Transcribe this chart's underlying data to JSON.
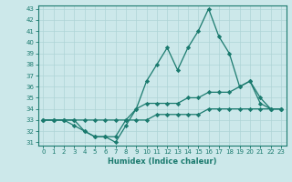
{
  "xlabel": "Humidex (Indice chaleur)",
  "ylabel": "",
  "x": [
    0,
    1,
    2,
    3,
    4,
    5,
    6,
    7,
    8,
    9,
    10,
    11,
    12,
    13,
    14,
    15,
    16,
    17,
    18,
    19,
    20,
    21,
    22,
    23
  ],
  "line_max": [
    33,
    33,
    33,
    33,
    32,
    31.5,
    31.5,
    31,
    32.5,
    34,
    36.5,
    38,
    39.5,
    37.5,
    39.5,
    41,
    43,
    40.5,
    39,
    36,
    36.5,
    34.5,
    34,
    34
  ],
  "line_avg": [
    33,
    33,
    33,
    32.5,
    32,
    31.5,
    31.5,
    31.5,
    33,
    34,
    34.5,
    34.5,
    34.5,
    34.5,
    35,
    35,
    35.5,
    35.5,
    35.5,
    36,
    36.5,
    35,
    34,
    34
  ],
  "line_min": [
    33,
    33,
    33,
    33,
    33,
    33,
    33,
    33,
    33,
    33,
    33,
    33.5,
    33.5,
    33.5,
    33.5,
    33.5,
    34,
    34,
    34,
    34,
    34,
    34,
    34,
    34
  ],
  "ylim": [
    31,
    43
  ],
  "yticks": [
    31,
    32,
    33,
    34,
    35,
    36,
    37,
    38,
    39,
    40,
    41,
    42,
    43
  ],
  "xlim": [
    -0.5,
    23.5
  ],
  "xticks": [
    0,
    1,
    2,
    3,
    4,
    5,
    6,
    7,
    8,
    9,
    10,
    11,
    12,
    13,
    14,
    15,
    16,
    17,
    18,
    19,
    20,
    21,
    22,
    23
  ],
  "line_color": "#1a7a6e",
  "bg_color": "#cce8ea",
  "grid_color": "#aed4d6",
  "marker": "D",
  "marker_size": 2.2,
  "linewidth": 0.9
}
